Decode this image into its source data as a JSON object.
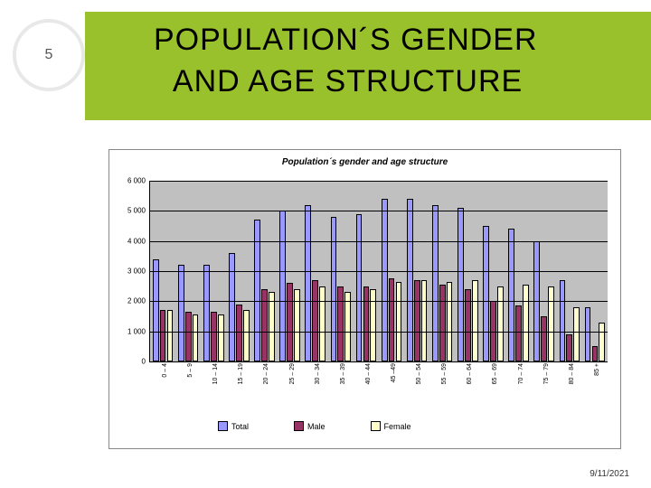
{
  "slide_number": "5",
  "title_line1": "POPULATION´S GENDER",
  "title_line2": "AND AGE STRUCTURE",
  "footer_date": "9/11/2021",
  "chart": {
    "type": "bar",
    "title": "Population´s gender and age structure",
    "ymax": 6000,
    "ytick_step": 1000,
    "yticks": [
      0,
      1000,
      2000,
      3000,
      4000,
      5000,
      6000
    ],
    "ytick_labels": [
      "0",
      "1 000",
      "2 000",
      "3 000",
      "4 000",
      "5 000",
      "6 000"
    ],
    "plot_background": "#c0c0c0",
    "grid_color": "#000000",
    "categories": [
      "0 – 4",
      "5 – 9",
      "10 – 14",
      "15 – 19",
      "20 – 24",
      "25 – 29",
      "30 – 34",
      "35 – 39",
      "40 – 44",
      "45 –49",
      "50 – 54",
      "55 – 59",
      "60 – 64",
      "65 – 69",
      "70 – 74",
      "75 – 79",
      "80 – 84",
      "85 +"
    ],
    "series": [
      {
        "name": "Total",
        "color": "#9999ff",
        "values": [
          3400,
          3200,
          3200,
          3600,
          4700,
          5000,
          5200,
          4800,
          4900,
          5400,
          5400,
          5200,
          5100,
          4500,
          4400,
          4000,
          2700,
          1800
        ]
      },
      {
        "name": "Male",
        "color": "#993366",
        "values": [
          1700,
          1650,
          1650,
          1900,
          2400,
          2600,
          2700,
          2500,
          2500,
          2750,
          2700,
          2550,
          2400,
          2000,
          1850,
          1500,
          900,
          500
        ]
      },
      {
        "name": "Female",
        "color": "#ffffcc",
        "values": [
          1700,
          1550,
          1550,
          1700,
          2300,
          2400,
          2500,
          2300,
          2400,
          2650,
          2700,
          2650,
          2700,
          2500,
          2550,
          2500,
          1800,
          1300
        ]
      }
    ],
    "legend": [
      "Total",
      "Male",
      "Female"
    ]
  }
}
